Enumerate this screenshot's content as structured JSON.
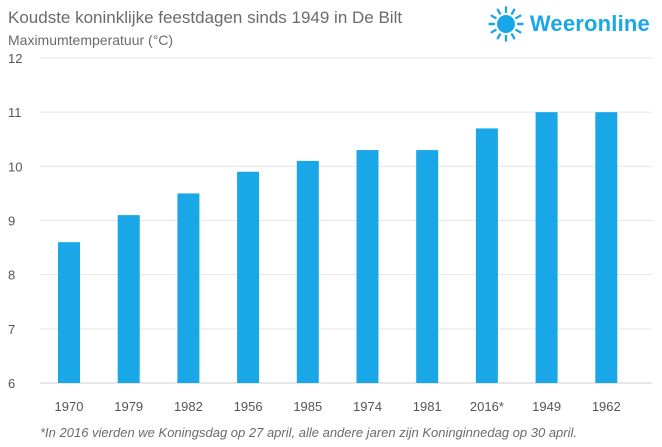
{
  "chart_data": {
    "type": "bar",
    "title": "Koudste koninklijke feestdagen sinds 1949 in De Bilt",
    "subtitle": "Maximumtemperatuur (°C)",
    "xlabel": "",
    "ylabel": "",
    "categories": [
      "1970",
      "1979",
      "1982",
      "1956",
      "1985",
      "1974",
      "1981",
      "2016*",
      "1949",
      "1962"
    ],
    "values": [
      8.6,
      9.1,
      9.5,
      9.9,
      10.1,
      10.3,
      10.3,
      10.7,
      11.0,
      11.0
    ],
    "ylim": [
      6,
      12
    ],
    "yticks": [
      6,
      7,
      8,
      9,
      10,
      11,
      12
    ],
    "grid": true,
    "bar_color": "#1aa7e8",
    "grid_color": "#e6e6e6"
  },
  "logo": {
    "text": "Weeronline",
    "icon": "sun-icon",
    "color": "#1aa7e8"
  },
  "footnote": "*In 2016 vierden we Koningsdag op 27 april, alle andere jaren zijn Koninginnedag op 30 april."
}
